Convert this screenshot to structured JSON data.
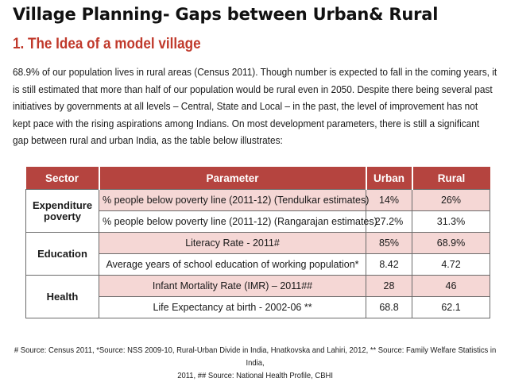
{
  "slide": {
    "title": "Village Planning- Gaps between Urban& Rural"
  },
  "section": {
    "title": "1. The Idea of a model village"
  },
  "intro": {
    "text": "68.9% of our population lives in rural areas (Census 2011). Though number is expected to fall in the coming years, it is still estimated that more than half of our population would be rural even in 2050. Despite there being several past initiatives by governments at all levels – Central, State and Local – in the past, the level of improvement has not kept pace with the rising aspirations among Indians. On most development parameters, there is still a significant gap between rural and urban India, as the table below illustrates:"
  },
  "table": {
    "headers": {
      "sector": "Sector",
      "parameter": "Parameter",
      "urban": "Urban",
      "rural": "Rural"
    },
    "groups": [
      {
        "sector_line1": "Expenditure",
        "sector_line2": "poverty",
        "rows": [
          {
            "parameter": "% people below poverty line (2011-12) (Tendulkar estimates)",
            "urban": "14%",
            "rural": "26%"
          },
          {
            "parameter": "% people below poverty line (2011-12) (Rangarajan estimates)",
            "urban": "27.2%",
            "rural": "31.3%"
          }
        ]
      },
      {
        "sector_line1": "Education",
        "rows": [
          {
            "parameter": "Literacy Rate - 2011#",
            "urban": "85%",
            "rural": "68.9%"
          },
          {
            "parameter": "Average years of school education of working population*",
            "urban": "8.42",
            "rural": "4.72"
          }
        ]
      },
      {
        "sector_line1": "Health",
        "rows": [
          {
            "parameter": "Infant Mortality Rate (IMR) – 2011##",
            "urban": "28",
            "rural": "46"
          },
          {
            "parameter": "Life Expectancy at birth - 2002-06 **",
            "urban": "68.8",
            "rural": "62.1"
          }
        ]
      }
    ]
  },
  "sources": {
    "line1": "# Source: Census 2011, *Source: NSS 2009-10, Rural-Urban Divide in India, Hnatkovska and Lahiri, 2012, ** Source: Family Welfare Statistics in India,",
    "line2": "2011, ## Source: National Health Profile, CBHI"
  },
  "colors": {
    "header_bg": "#b5443f",
    "section_title": "#c0392b",
    "pink_row": "#f5d7d5"
  }
}
